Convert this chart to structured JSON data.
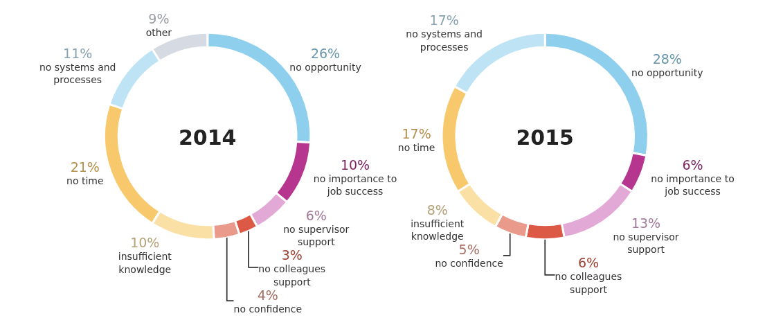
{
  "chart_data": [
    {
      "type": "donut",
      "title": "2014",
      "legend": false,
      "categories": [
        "no opportunity",
        "no importance to job success",
        "no supervisor support",
        "no colleagues support",
        "no confidence",
        "insufficient knowledge",
        "no time",
        "no systems and processes",
        "other"
      ],
      "values": [
        26,
        10,
        6,
        3,
        4,
        10,
        21,
        11,
        9
      ],
      "value_labels": [
        "26%",
        "10%",
        "6%",
        "3%",
        "4%",
        "10%",
        "21%",
        "11%",
        "9%"
      ],
      "colors": [
        "#8ecfee",
        "#b5358f",
        "#e3a9d6",
        "#dc5a45",
        "#e99a8a",
        "#fbe0a6",
        "#f8c96c",
        "#bde3f5",
        "#d5dae3"
      ]
    },
    {
      "type": "donut",
      "title": "2015",
      "legend": false,
      "categories": [
        "no opportunity",
        "no importance to job success",
        "no supervisor support",
        "no colleagues support",
        "no confidence",
        "insufficient knowledge",
        "no time",
        "no systems and processes"
      ],
      "values": [
        28,
        6,
        13,
        6,
        5,
        8,
        17,
        17
      ],
      "value_labels": [
        "28%",
        "6%",
        "13%",
        "6%",
        "5%",
        "8%",
        "17%",
        "17%"
      ],
      "colors": [
        "#8ecfee",
        "#b5358f",
        "#e3a9d6",
        "#dc5a45",
        "#e99a8a",
        "#fbe0a6",
        "#f8c96c",
        "#bde3f5"
      ]
    }
  ]
}
